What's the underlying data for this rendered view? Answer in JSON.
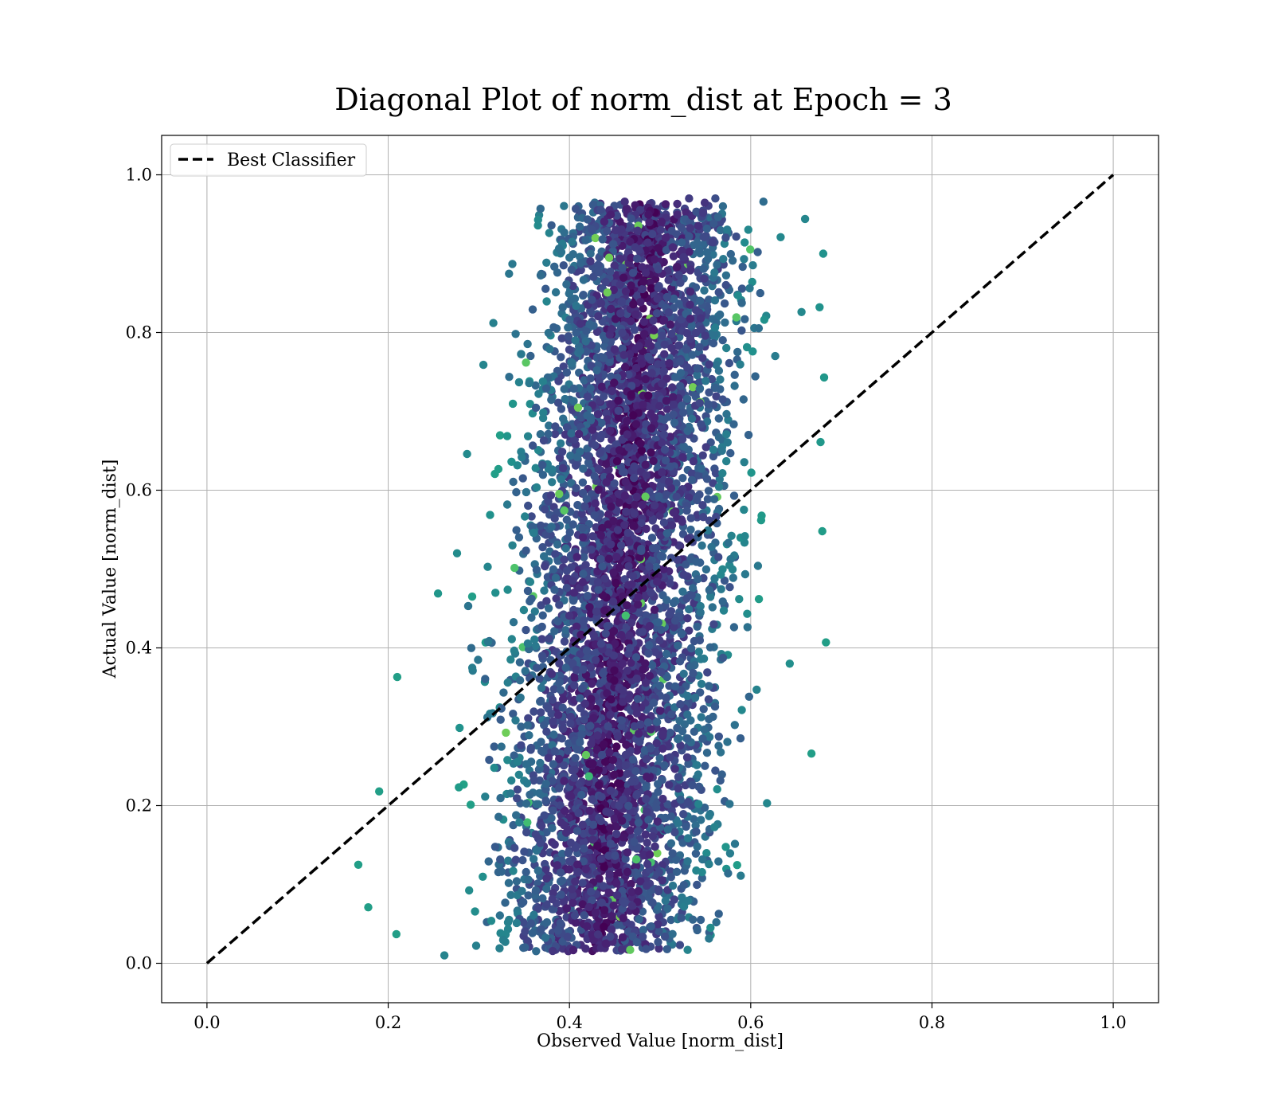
{
  "chart_data": {
    "type": "scatter",
    "title": "Diagonal Plot of norm_dist at Epoch = 3",
    "xlabel": "Observed Value [norm_dist]",
    "ylabel": "Actual Value [norm_dist]",
    "xlim": [
      -0.05,
      1.05
    ],
    "ylim": [
      -0.05,
      1.05
    ],
    "xticks": [
      "0.0",
      "0.2",
      "0.4",
      "0.6",
      "0.8",
      "1.0"
    ],
    "yticks": [
      "0.0",
      "0.2",
      "0.4",
      "0.6",
      "0.8",
      "1.0"
    ],
    "grid": true,
    "legend": {
      "position": "top-left",
      "entries": [
        "Best Classifier"
      ]
    },
    "reference_line": {
      "name": "Best Classifier",
      "style": "dashed",
      "color": "#000000",
      "x": [
        0.0,
        1.0
      ],
      "y": [
        0.0,
        1.0
      ]
    },
    "colormap": "viridis",
    "point_cloud": {
      "x_range": [
        0.17,
        0.69
      ],
      "y_range": [
        0.01,
        0.97
      ],
      "trend": "x increases with y: low y near x≈0.2–0.55, high y near x≈0.35–0.68",
      "color_trend": "dark purple near center of the band, teal/green toward the edges"
    },
    "sample_points": [
      [
        0.167,
        0.125
      ],
      [
        0.178,
        0.071
      ],
      [
        0.209,
        0.037
      ],
      [
        0.262,
        0.01
      ],
      [
        0.44,
        0.025
      ],
      [
        0.562,
        0.052
      ],
      [
        0.541,
        0.042
      ],
      [
        0.589,
        0.111
      ],
      [
        0.618,
        0.203
      ],
      [
        0.667,
        0.266
      ],
      [
        0.683,
        0.407
      ],
      [
        0.679,
        0.548
      ],
      [
        0.677,
        0.661
      ],
      [
        0.681,
        0.743
      ],
      [
        0.676,
        0.832
      ],
      [
        0.68,
        0.9
      ],
      [
        0.66,
        0.944
      ],
      [
        0.614,
        0.966
      ],
      [
        0.561,
        0.97
      ],
      [
        0.532,
        0.97
      ],
      [
        0.461,
        0.966
      ],
      [
        0.407,
        0.957
      ],
      [
        0.368,
        0.957
      ],
      [
        0.337,
        0.887
      ],
      [
        0.316,
        0.812
      ],
      [
        0.305,
        0.759
      ],
      [
        0.287,
        0.646
      ],
      [
        0.276,
        0.52
      ],
      [
        0.255,
        0.469
      ],
      [
        0.21,
        0.363
      ],
      [
        0.19,
        0.218
      ],
      [
        0.554,
        0.724
      ],
      [
        0.608,
        0.504
      ],
      [
        0.547,
        0.285
      ],
      [
        0.656,
        0.826
      ],
      [
        0.643,
        0.38
      ]
    ]
  }
}
